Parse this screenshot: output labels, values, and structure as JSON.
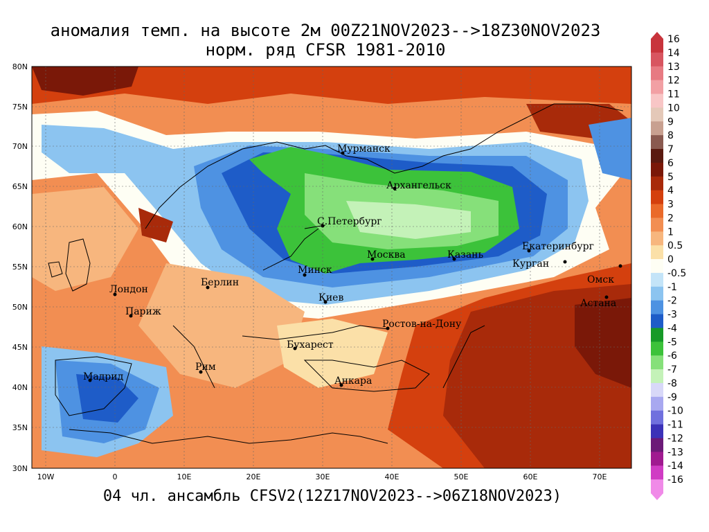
{
  "title_line1": "аномалия темп. на высоте 2м 00Z21NOV2023-->18Z30NOV2023",
  "title_line2": "норм. ряд CFSR 1981-2010",
  "footer": "04 чл. ансамбль CFSV2(12Z17NOV2023-->06Z18NOV2023)",
  "axes": {
    "lat_labels": [
      "80N",
      "75N",
      "70N",
      "65N",
      "60N",
      "55N",
      "50N",
      "45N",
      "40N",
      "35N",
      "30N"
    ],
    "lon_labels": [
      "10W",
      "0",
      "10E",
      "20E",
      "30E",
      "40E",
      "50E",
      "60E",
      "70E"
    ]
  },
  "cities": [
    {
      "name": "Мурманск"
    },
    {
      "name": "Архангельск"
    },
    {
      "name": "С.Петербург"
    },
    {
      "name": "Москва"
    },
    {
      "name": "Казань"
    },
    {
      "name": "Екатеринбург"
    },
    {
      "name": "Курган"
    },
    {
      "name": "Омск"
    },
    {
      "name": "Астана"
    },
    {
      "name": "Минск"
    },
    {
      "name": "Киев"
    },
    {
      "name": "Берлин"
    },
    {
      "name": "Лондон"
    },
    {
      "name": "Париж"
    },
    {
      "name": "Ростов-на-Дону"
    },
    {
      "name": "Бухарест"
    },
    {
      "name": "Рим"
    },
    {
      "name": "Анкара"
    },
    {
      "name": "Мадрид"
    }
  ],
  "colorbar": [
    {
      "label": "16",
      "color": "#c8343c"
    },
    {
      "label": "14",
      "color": "#d85560"
    },
    {
      "label": "13",
      "color": "#e77a82"
    },
    {
      "label": "12",
      "color": "#f2a0a4"
    },
    {
      "label": "11",
      "color": "#f8c6c6"
    },
    {
      "label": "10",
      "color": "#e4c8b8"
    },
    {
      "label": "9",
      "color": "#c8a090"
    },
    {
      "label": "8",
      "color": "#8a5a50"
    },
    {
      "label": "7",
      "color": "#5a1a10"
    },
    {
      "label": "6",
      "color": "#7a1808"
    },
    {
      "label": "5",
      "color": "#a82a0a"
    },
    {
      "label": "4",
      "color": "#d4400e"
    },
    {
      "label": "3",
      "color": "#ea6a2a"
    },
    {
      "label": "2",
      "color": "#f28e52"
    },
    {
      "label": "1",
      "color": "#f7b67e"
    },
    {
      "label": "0.5",
      "color": "#fbe0a8"
    },
    {
      "label": "0",
      "color": "#fefef4"
    },
    {
      "label": "-0.5",
      "color": "#c4e4f8"
    },
    {
      "label": "-1",
      "color": "#8cc4f0"
    },
    {
      "label": "-2",
      "color": "#4e92e2"
    },
    {
      "label": "-3",
      "color": "#1e5cc8"
    },
    {
      "label": "-4",
      "color": "#169a28"
    },
    {
      "label": "-5",
      "color": "#3cc23a"
    },
    {
      "label": "-6",
      "color": "#86e07a"
    },
    {
      "label": "-7",
      "color": "#c4f2b8"
    },
    {
      "label": "-8",
      "color": "#d8d8f8"
    },
    {
      "label": "-9",
      "color": "#a8a8f0"
    },
    {
      "label": "-10",
      "color": "#7070de"
    },
    {
      "label": "-11",
      "color": "#3c32b8"
    },
    {
      "label": "-12",
      "color": "#6c1a78"
    },
    {
      "label": "-13",
      "color": "#a01a90"
    },
    {
      "label": "-14",
      "color": "#d03cc4"
    },
    {
      "label": "-16",
      "color": "#f08ae8"
    }
  ]
}
